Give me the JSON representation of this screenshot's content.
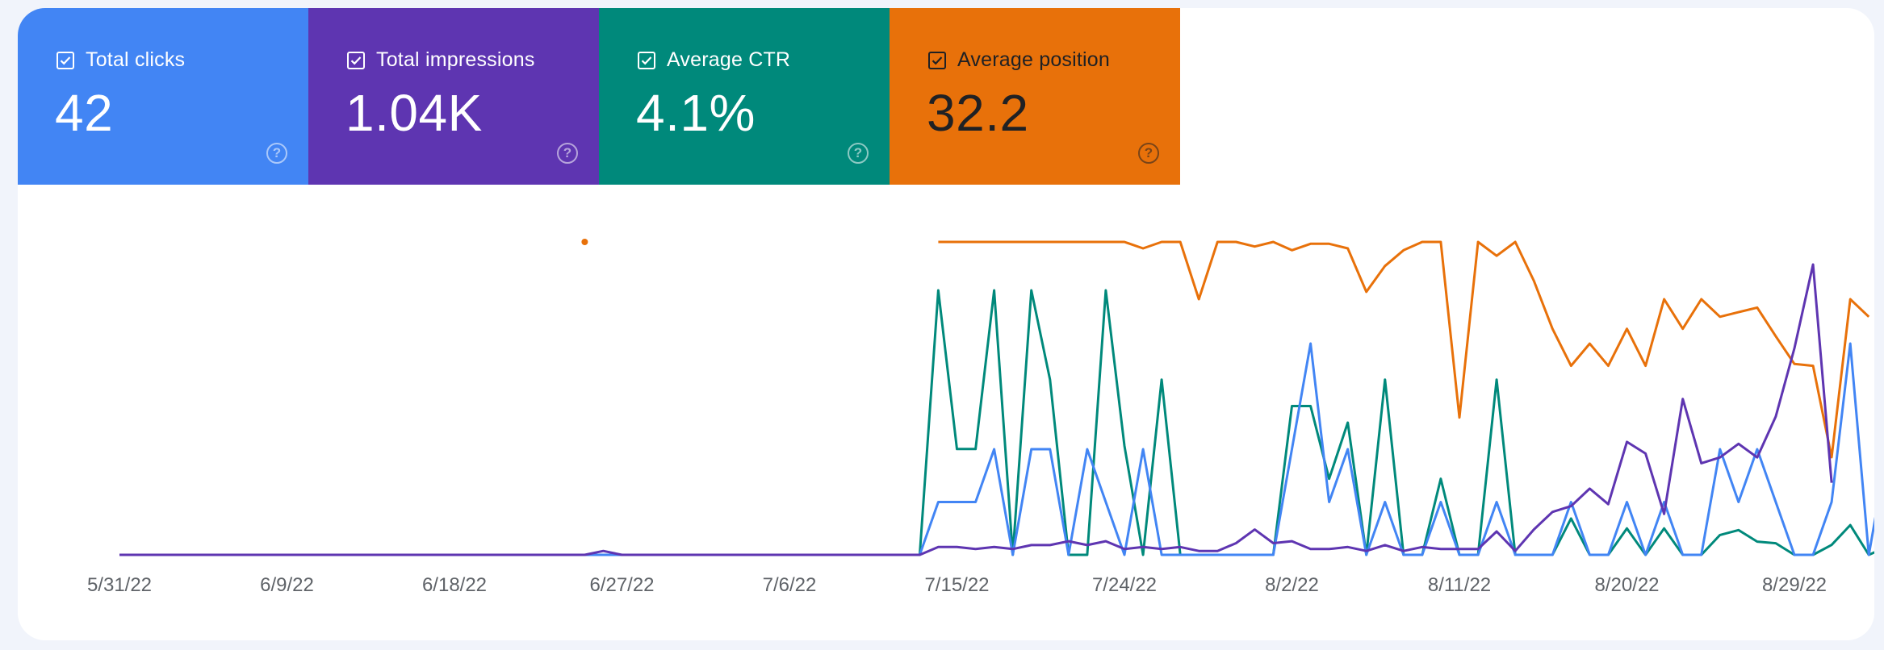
{
  "tiles": [
    {
      "label": "Total clicks",
      "value": "42",
      "color": "#4285f4",
      "text_color": "#ffffff",
      "checked": true
    },
    {
      "label": "Total impressions",
      "value": "1.04K",
      "color": "#5e35b1",
      "text_color": "#ffffff",
      "checked": true
    },
    {
      "label": "Average CTR",
      "value": "4.1%",
      "color": "#00897b",
      "text_color": "#ffffff",
      "checked": true
    },
    {
      "label": "Average position",
      "value": "32.2",
      "color": "#e8710a",
      "text_color": "#202124",
      "checked": true
    }
  ],
  "chart_data": {
    "type": "line",
    "x_tick_labels": [
      "5/31/22",
      "6/9/22",
      "6/18/22",
      "6/27/22",
      "7/6/22",
      "7/15/22",
      "7/24/22",
      "8/2/22",
      "8/11/22",
      "8/20/22",
      "8/29/22"
    ],
    "x_start": "2022-05-31",
    "x_end": "2022-08-29",
    "y_axes": "independent per series, unlabeled",
    "grid": false,
    "legend": "metric tiles above chart",
    "series": [
      {
        "metric": "Average position",
        "color": "#e8710a",
        "points": [
          [
            "2022-06-25",
            1
          ],
          [
            "2022-07-14",
            1
          ],
          [
            "2022-07-15",
            1
          ],
          [
            "2022-07-16",
            1
          ],
          [
            "2022-07-17",
            1
          ],
          [
            "2022-07-18",
            1
          ],
          [
            "2022-07-19",
            1
          ],
          [
            "2022-07-20",
            1
          ],
          [
            "2022-07-21",
            1
          ],
          [
            "2022-07-22",
            1
          ],
          [
            "2022-07-23",
            1
          ],
          [
            "2022-07-24",
            1
          ],
          [
            "2022-07-25",
            1.7
          ],
          [
            "2022-07-26",
            1
          ],
          [
            "2022-07-27",
            1
          ],
          [
            "2022-07-28",
            7.2
          ],
          [
            "2022-07-29",
            1
          ],
          [
            "2022-07-30",
            1
          ],
          [
            "2022-07-31",
            1.5
          ],
          [
            "2022-08-01",
            1
          ],
          [
            "2022-08-02",
            1.9
          ],
          [
            "2022-08-03",
            1.2
          ],
          [
            "2022-08-04",
            1.2
          ],
          [
            "2022-08-05",
            1.7
          ],
          [
            "2022-08-06",
            6.4
          ],
          [
            "2022-08-07",
            3.6
          ],
          [
            "2022-08-08",
            1.9
          ],
          [
            "2022-08-09",
            1
          ],
          [
            "2022-08-10",
            1
          ],
          [
            "2022-08-11",
            20
          ],
          [
            "2022-08-12",
            1
          ],
          [
            "2022-08-13",
            2.5
          ],
          [
            "2022-08-14",
            1
          ],
          [
            "2022-08-15",
            5.2
          ],
          [
            "2022-08-16",
            10.4
          ],
          [
            "2022-08-17",
            14.4
          ],
          [
            "2022-08-18",
            12
          ],
          [
            "2022-08-19",
            14.4
          ],
          [
            "2022-08-20",
            10.4
          ],
          [
            "2022-08-21",
            14.4
          ],
          [
            "2022-08-22",
            7.2
          ],
          [
            "2022-08-23",
            10.4
          ],
          [
            "2022-08-24",
            7.2
          ],
          [
            "2022-08-25",
            9.1
          ],
          [
            "2022-08-26",
            8.6
          ],
          [
            "2022-08-27",
            8.1
          ],
          [
            "2022-08-28",
            11.2
          ],
          [
            "2022-08-29",
            14.2
          ],
          [
            "2022-08-30",
            14.4
          ],
          [
            "2022-08-31",
            24.3
          ],
          [
            "2022-09-01",
            7.2
          ],
          [
            "2022-09-02",
            9.1
          ]
        ]
      },
      {
        "metric": "Average CTR",
        "color": "#00897b",
        "points": [
          [
            "2022-05-31",
            0
          ],
          [
            "2022-07-12",
            0
          ],
          [
            "2022-07-13",
            0
          ],
          [
            "2022-07-14",
            80
          ],
          [
            "2022-07-15",
            32
          ],
          [
            "2022-07-16",
            32
          ],
          [
            "2022-07-17",
            80
          ],
          [
            "2022-07-18",
            0
          ],
          [
            "2022-07-19",
            80
          ],
          [
            "2022-07-20",
            53
          ],
          [
            "2022-07-21",
            0
          ],
          [
            "2022-07-22",
            0
          ],
          [
            "2022-07-23",
            80
          ],
          [
            "2022-07-24",
            33
          ],
          [
            "2022-07-25",
            0
          ],
          [
            "2022-07-26",
            53
          ],
          [
            "2022-07-27",
            0
          ],
          [
            "2022-07-28",
            0
          ],
          [
            "2022-07-29",
            0
          ],
          [
            "2022-07-30",
            0
          ],
          [
            "2022-07-31",
            0
          ],
          [
            "2022-08-01",
            0
          ],
          [
            "2022-08-02",
            45
          ],
          [
            "2022-08-03",
            45
          ],
          [
            "2022-08-04",
            23
          ],
          [
            "2022-08-05",
            40
          ],
          [
            "2022-08-06",
            0
          ],
          [
            "2022-08-07",
            53
          ],
          [
            "2022-08-08",
            0
          ],
          [
            "2022-08-09",
            0
          ],
          [
            "2022-08-10",
            23
          ],
          [
            "2022-08-11",
            0
          ],
          [
            "2022-08-12",
            0
          ],
          [
            "2022-08-13",
            53
          ],
          [
            "2022-08-14",
            0
          ],
          [
            "2022-08-15",
            0
          ],
          [
            "2022-08-16",
            0
          ],
          [
            "2022-08-17",
            11
          ],
          [
            "2022-08-18",
            0
          ],
          [
            "2022-08-19",
            0
          ],
          [
            "2022-08-20",
            8
          ],
          [
            "2022-08-21",
            0
          ],
          [
            "2022-08-22",
            8
          ],
          [
            "2022-08-23",
            0
          ],
          [
            "2022-08-24",
            0
          ],
          [
            "2022-08-25",
            6
          ],
          [
            "2022-08-26",
            7.5
          ],
          [
            "2022-08-27",
            4
          ],
          [
            "2022-08-28",
            3.5
          ],
          [
            "2022-08-29",
            0
          ],
          [
            "2022-08-30",
            0
          ],
          [
            "2022-08-31",
            3
          ],
          [
            "2022-09-01",
            9
          ],
          [
            "2022-09-02",
            0
          ],
          [
            "2022-09-03",
            2.5
          ],
          [
            "2022-09-04",
            0
          ]
        ]
      },
      {
        "metric": "Total clicks",
        "color": "#4285f4",
        "points": [
          [
            "2022-05-31",
            0
          ],
          [
            "2022-07-13",
            0
          ],
          [
            "2022-07-14",
            1
          ],
          [
            "2022-07-15",
            1
          ],
          [
            "2022-07-16",
            1
          ],
          [
            "2022-07-17",
            2
          ],
          [
            "2022-07-18",
            0
          ],
          [
            "2022-07-19",
            2
          ],
          [
            "2022-07-20",
            2
          ],
          [
            "2022-07-21",
            0
          ],
          [
            "2022-07-22",
            2
          ],
          [
            "2022-07-23",
            1
          ],
          [
            "2022-07-24",
            0
          ],
          [
            "2022-07-25",
            2
          ],
          [
            "2022-07-26",
            0
          ],
          [
            "2022-07-27",
            0
          ],
          [
            "2022-07-28",
            0
          ],
          [
            "2022-07-29",
            0
          ],
          [
            "2022-07-30",
            0
          ],
          [
            "2022-07-31",
            0
          ],
          [
            "2022-08-01",
            0
          ],
          [
            "2022-08-02",
            2
          ],
          [
            "2022-08-03",
            4
          ],
          [
            "2022-08-04",
            1
          ],
          [
            "2022-08-05",
            2
          ],
          [
            "2022-08-06",
            0
          ],
          [
            "2022-08-07",
            1
          ],
          [
            "2022-08-08",
            0
          ],
          [
            "2022-08-09",
            0
          ],
          [
            "2022-08-10",
            1
          ],
          [
            "2022-08-11",
            0
          ],
          [
            "2022-08-12",
            0
          ],
          [
            "2022-08-13",
            1
          ],
          [
            "2022-08-14",
            0
          ],
          [
            "2022-08-15",
            0
          ],
          [
            "2022-08-16",
            0
          ],
          [
            "2022-08-17",
            1
          ],
          [
            "2022-08-18",
            0
          ],
          [
            "2022-08-19",
            0
          ],
          [
            "2022-08-20",
            1
          ],
          [
            "2022-08-21",
            0
          ],
          [
            "2022-08-22",
            1
          ],
          [
            "2022-08-23",
            0
          ],
          [
            "2022-08-24",
            0
          ],
          [
            "2022-08-25",
            2
          ],
          [
            "2022-08-26",
            1
          ],
          [
            "2022-08-27",
            2
          ],
          [
            "2022-08-28",
            1
          ],
          [
            "2022-08-29",
            0
          ],
          [
            "2022-08-30",
            0
          ],
          [
            "2022-08-31",
            1
          ],
          [
            "2022-09-01",
            4
          ],
          [
            "2022-09-02",
            0
          ],
          [
            "2022-09-03",
            2
          ],
          [
            "2022-09-04",
            0
          ]
        ]
      },
      {
        "metric": "Total impressions",
        "color": "#5e35b1",
        "points": [
          [
            "2022-05-31",
            0
          ],
          [
            "2022-06-25",
            0
          ],
          [
            "2022-06-26",
            2
          ],
          [
            "2022-06-27",
            0
          ],
          [
            "2022-07-13",
            0
          ],
          [
            "2022-07-14",
            4
          ],
          [
            "2022-07-15",
            4
          ],
          [
            "2022-07-16",
            3
          ],
          [
            "2022-07-17",
            4
          ],
          [
            "2022-07-18",
            3
          ],
          [
            "2022-07-19",
            5
          ],
          [
            "2022-07-20",
            5
          ],
          [
            "2022-07-21",
            7
          ],
          [
            "2022-07-22",
            5
          ],
          [
            "2022-07-23",
            7
          ],
          [
            "2022-07-24",
            3
          ],
          [
            "2022-07-25",
            4
          ],
          [
            "2022-07-26",
            3
          ],
          [
            "2022-07-27",
            4
          ],
          [
            "2022-07-28",
            2
          ],
          [
            "2022-07-29",
            2
          ],
          [
            "2022-07-30",
            6
          ],
          [
            "2022-07-31",
            13
          ],
          [
            "2022-08-01",
            6
          ],
          [
            "2022-08-02",
            7
          ],
          [
            "2022-08-03",
            3
          ],
          [
            "2022-08-04",
            3
          ],
          [
            "2022-08-05",
            4
          ],
          [
            "2022-08-06",
            2
          ],
          [
            "2022-08-07",
            5
          ],
          [
            "2022-08-08",
            2
          ],
          [
            "2022-08-09",
            4
          ],
          [
            "2022-08-10",
            3
          ],
          [
            "2022-08-11",
            3
          ],
          [
            "2022-08-12",
            3
          ],
          [
            "2022-08-13",
            12
          ],
          [
            "2022-08-14",
            2
          ],
          [
            "2022-08-15",
            13
          ],
          [
            "2022-08-16",
            22
          ],
          [
            "2022-08-17",
            25
          ],
          [
            "2022-08-18",
            34
          ],
          [
            "2022-08-19",
            26
          ],
          [
            "2022-08-20",
            58
          ],
          [
            "2022-08-21",
            52
          ],
          [
            "2022-08-22",
            21
          ],
          [
            "2022-08-23",
            80
          ],
          [
            "2022-08-24",
            47
          ],
          [
            "2022-08-25",
            50
          ],
          [
            "2022-08-26",
            57
          ],
          [
            "2022-08-27",
            50
          ],
          [
            "2022-08-28",
            71
          ],
          [
            "2022-08-29",
            106
          ],
          [
            "2022-08-30",
            149
          ],
          [
            "2022-08-31",
            37
          ]
        ]
      }
    ]
  }
}
